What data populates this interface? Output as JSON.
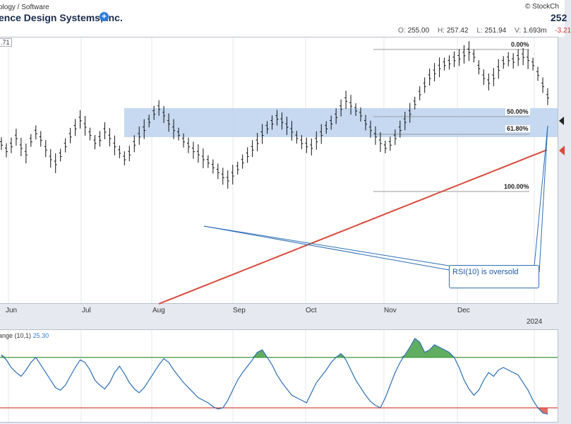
{
  "header": {
    "breadcrumb": "ology / Software",
    "title": "ence Design Systems, Inc.",
    "brand": "© StockCh",
    "price": "252",
    "ohlc": [
      {
        "key": "O:",
        "value": "255.00"
      },
      {
        "key": "H:",
        "value": "257.42"
      },
      {
        "key": "L:",
        "value": "251.94"
      },
      {
        "key": "V:",
        "value": "1.693m"
      }
    ],
    "change": "-3.21"
  },
  "legend": {
    "main_value": ".71",
    "rsi_label": "ange (10,1)",
    "rsi_value": "25.30"
  },
  "annotation": {
    "note": "RSI(10) is oversold"
  },
  "fib_labels": [
    "0.00%",
    "50.00%",
    "61.80%",
    "100.00%"
  ],
  "colors": {
    "price_bar": "#111111",
    "sma": "#d84a3a",
    "retrace_zone": "#bcd2ee",
    "rsi_line": "#2c6fb5",
    "overbought_line": "#3a9a3a",
    "oversold_line": "#d84a3a",
    "callout": "#2c6fb5"
  },
  "chart_data": [
    {
      "type": "ohlc",
      "x_ticks": [
        "Jun",
        "Jul",
        "Aug",
        "Sep",
        "Oct",
        "Nov",
        "Dec",
        "2024"
      ],
      "series": [
        {
          "values": [
            0.42,
            0.38,
            0.41,
            0.46,
            0.4,
            0.36,
            0.44,
            0.49,
            0.45,
            0.39,
            0.33,
            0.3,
            0.35,
            0.41,
            0.47,
            0.52,
            0.57,
            0.53,
            0.48,
            0.43,
            0.45,
            0.5,
            0.46,
            0.41,
            0.37,
            0.33,
            0.36,
            0.42,
            0.47,
            0.51,
            0.56,
            0.61,
            0.64,
            0.6,
            0.55,
            0.51,
            0.48,
            0.44,
            0.41,
            0.38,
            0.36,
            0.33,
            0.31,
            0.28,
            0.25,
            0.22,
            0.2,
            0.23,
            0.27,
            0.31,
            0.35,
            0.39,
            0.43,
            0.48,
            0.52,
            0.55,
            0.58,
            0.56,
            0.53,
            0.5,
            0.46,
            0.43,
            0.41,
            0.4,
            0.44,
            0.48,
            0.52,
            0.55,
            0.59,
            0.64,
            0.69,
            0.66,
            0.63,
            0.6,
            0.55,
            0.51,
            0.47,
            0.43,
            0.4,
            0.42,
            0.46,
            0.51,
            0.56,
            0.61,
            0.67,
            0.73,
            0.78,
            0.83,
            0.86,
            0.89,
            0.91,
            0.92,
            0.94,
            0.95,
            0.97,
            0.99,
            0.96,
            0.89,
            0.83,
            0.8,
            0.83,
            0.88,
            0.92,
            0.94,
            0.93,
            0.95,
            0.96,
            0.94,
            0.91,
            0.85,
            0.78,
            0.71
          ]
        },
        {
          "name": "",
          "values": [
            0.0,
            0.02,
            0.04,
            0.06,
            0.08,
            0.1,
            0.12,
            0.14,
            0.16,
            0.18,
            0.2,
            0.22,
            0.24,
            0.26,
            0.28,
            0.3,
            0.32,
            0.34,
            0.36,
            0.38,
            0.4,
            0.42,
            0.44,
            0.46,
            0.48,
            0.5,
            0.52,
            0.54,
            0.56,
            0.58,
            0.6,
            0.62,
            0.64,
            0.66,
            0.68,
            0.7,
            0.72,
            0.74,
            0.76,
            0.78,
            0.8,
            0.82,
            0.84,
            0.86,
            0.88,
            0.9,
            0.92,
            0.94,
            0.96,
            0.98,
            1.0
          ]
        }
      ],
      "fib_levels": [
        0.0,
        50.0,
        61.8,
        100.0
      ]
    },
    {
      "type": "line",
      "title": "ange (10,1)",
      "last_value": 25.3,
      "levels": {
        "overbought": 70,
        "oversold": 30
      },
      "series": [
        {
          "values": [
            72,
            68,
            62,
            58,
            55,
            60,
            66,
            70,
            64,
            58,
            52,
            46,
            44,
            48,
            55,
            62,
            68,
            66,
            60,
            52,
            48,
            45,
            50,
            58,
            63,
            57,
            50,
            45,
            42,
            46,
            52,
            58,
            64,
            69,
            66,
            60,
            55,
            50,
            46,
            42,
            38,
            36,
            34,
            31,
            29,
            30,
            36,
            44,
            52,
            58,
            63,
            68,
            74,
            76,
            70,
            64,
            56,
            50,
            45,
            40,
            38,
            36,
            34,
            42,
            50,
            55,
            60,
            66,
            70,
            73,
            68,
            60,
            52,
            46,
            40,
            35,
            32,
            30,
            38,
            48,
            58,
            66,
            72,
            78,
            85,
            82,
            74,
            76,
            80,
            78,
            76,
            74,
            70,
            62,
            52,
            45,
            40,
            44,
            52,
            58,
            55,
            60,
            62,
            60,
            58,
            56,
            50,
            44,
            36,
            30,
            26,
            25
          ]
        }
      ]
    }
  ]
}
